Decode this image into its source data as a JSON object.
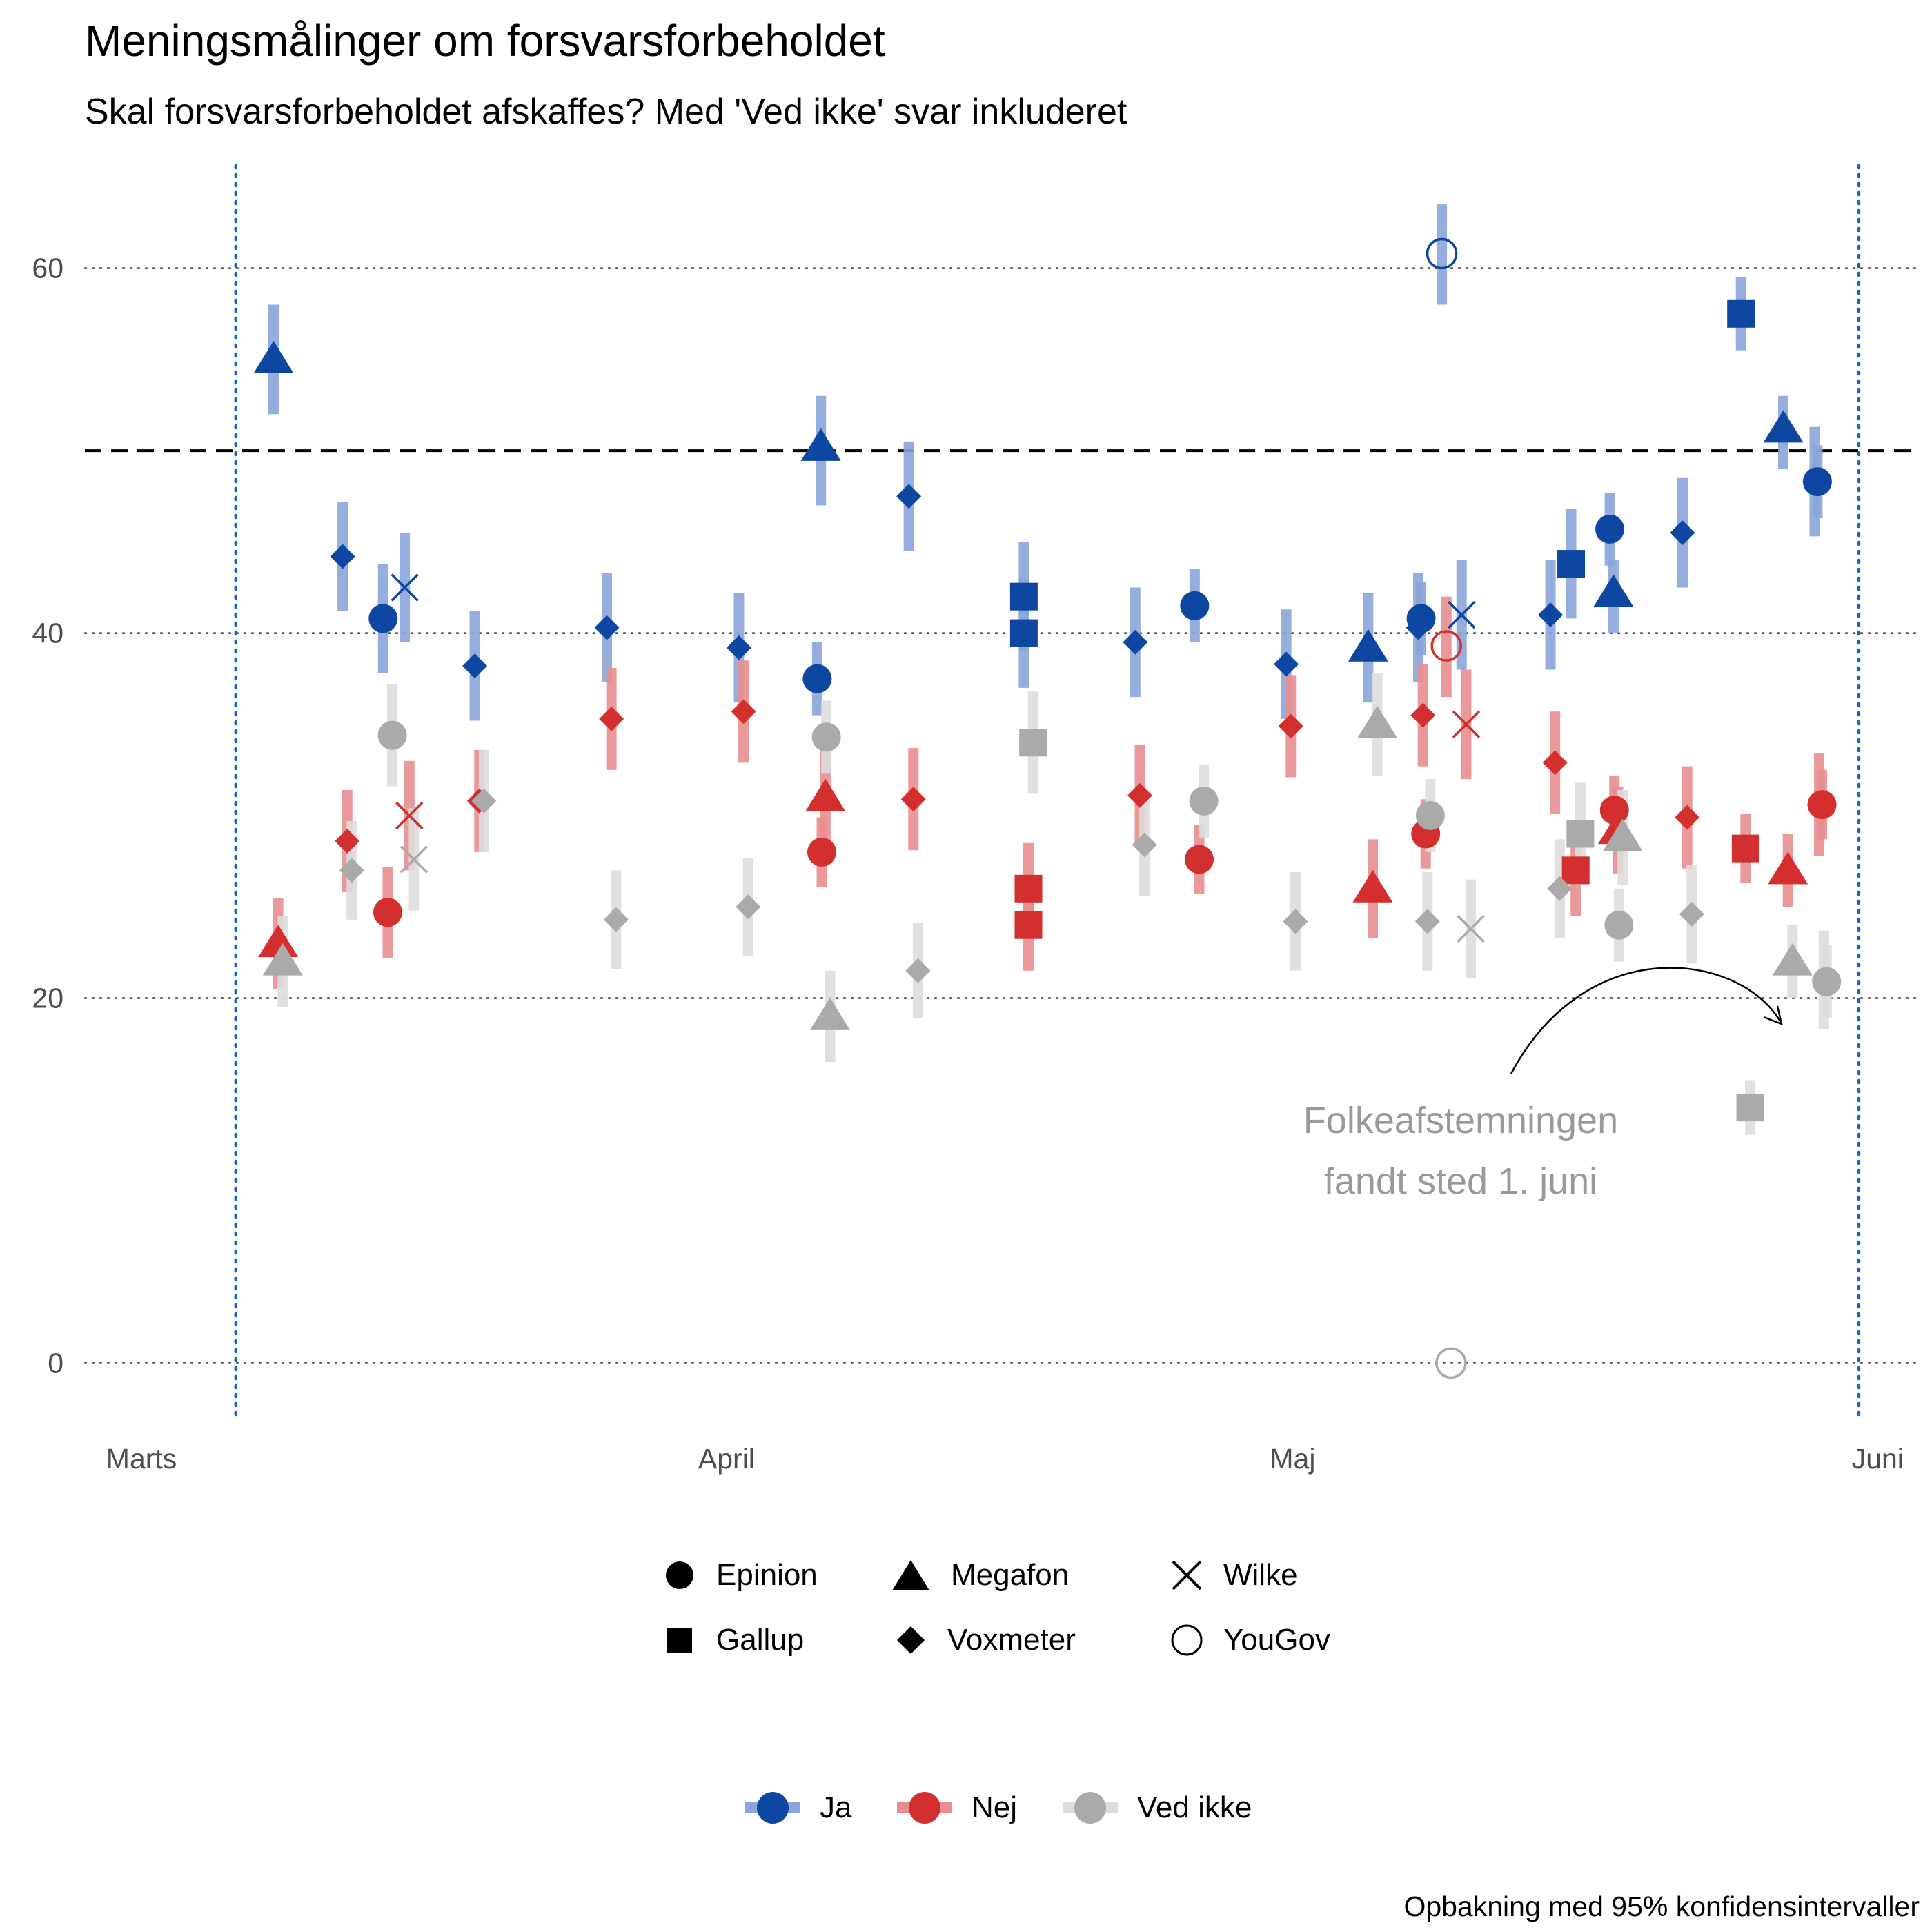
{
  "title": "Meningsmålinger om forsvarsforbeholdet",
  "subtitle": "Skal forsvarsforbeholdet afskaffes? Med 'Ved ikke' svar inkluderet",
  "caption": "Opbakning med 95% konfidensintervaller",
  "colors": {
    "Ja": "#0D47A1",
    "Nej": "#D32F2F",
    "Ved ikke": "#AAAAAA",
    "Ja_ci": "#8BA6DA",
    "Nej_ci": "#E88E90",
    "Ved ikke_ci": "#DDDDDD"
  },
  "legend_pollsters": [
    {
      "name": "Epinion",
      "shape": "circle"
    },
    {
      "name": "Gallup",
      "shape": "square"
    },
    {
      "name": "Megafon",
      "shape": "triangle"
    },
    {
      "name": "Voxmeter",
      "shape": "diamond"
    },
    {
      "name": "Wilke",
      "shape": "cross"
    },
    {
      "name": "YouGov",
      "shape": "open-circle"
    }
  ],
  "legend_answers": [
    "Ja",
    "Nej",
    "Ved ikke"
  ],
  "annotation": {
    "line1": "Folkeafstemningen",
    "line2": "fandt sted 1. juni"
  },
  "chart_data": {
    "type": "scatter",
    "title": "Meningsmålinger om forsvarsforbeholdet",
    "subtitle": "Skal forsvarsforbeholdet afskaffes? Med 'Ved ikke' svar inkluderet",
    "x_ticks": [
      {
        "date": "2022-03-01",
        "label": "Marts"
      },
      {
        "date": "2022-04-01",
        "label": "April"
      },
      {
        "date": "2022-05-01",
        "label": "Maj"
      },
      {
        "date": "2022-06-01",
        "label": "Juni"
      }
    ],
    "xlim": [
      "2022-02-26",
      "2022-06-03"
    ],
    "y_ticks": [
      0,
      20,
      40,
      60
    ],
    "ylim": [
      -3.2,
      66
    ],
    "grid": "horizontal dotted",
    "reference_line": {
      "y": 50,
      "style": "dashed"
    },
    "vertical_markers": [
      {
        "date": "2022-03-06"
      },
      {
        "date": "2022-05-31"
      }
    ],
    "series": [
      {
        "name": "Ja",
        "points": [
          {
            "pollster": "Megafon",
            "date": "2022-03-08",
            "value": 55.0,
            "ci": [
              52.0,
              58.0
            ]
          },
          {
            "pollster": "Voxmeter",
            "date": "2022-03-12",
            "value": 44.2,
            "ci": [
              41.2,
              47.2
            ]
          },
          {
            "pollster": "Epinion",
            "date": "2022-03-14",
            "value": 40.8,
            "ci": [
              37.8,
              43.8
            ]
          },
          {
            "pollster": "Wilke",
            "date": "2022-03-15",
            "value": 42.5,
            "ci": [
              39.5,
              45.5
            ]
          },
          {
            "pollster": "Voxmeter",
            "date": "2022-03-19",
            "value": 38.2,
            "ci": [
              35.2,
              41.2
            ]
          },
          {
            "pollster": "Voxmeter",
            "date": "2022-03-26",
            "value": 40.3,
            "ci": [
              37.3,
              43.3
            ]
          },
          {
            "pollster": "Voxmeter",
            "date": "2022-04-02",
            "value": 39.2,
            "ci": [
              36.2,
              42.2
            ]
          },
          {
            "pollster": "Epinion",
            "date": "2022-04-06",
            "value": 37.5,
            "ci": [
              35.5,
              39.5
            ]
          },
          {
            "pollster": "Megafon",
            "date": "2022-04-06",
            "value": 50.2,
            "ci": [
              47.0,
              53.0
            ]
          },
          {
            "pollster": "Voxmeter",
            "date": "2022-04-11",
            "value": 47.5,
            "ci": [
              44.5,
              50.5
            ]
          },
          {
            "pollster": "Gallup",
            "date": "2022-04-17",
            "value": 42.0,
            "ci": [
              39.0,
              45.0
            ]
          },
          {
            "pollster": "Gallup",
            "date": "2022-04-17",
            "value": 40.0,
            "ci": [
              37.0,
              43.0
            ]
          },
          {
            "pollster": "Voxmeter",
            "date": "2022-04-23",
            "value": 39.5,
            "ci": [
              36.5,
              42.5
            ]
          },
          {
            "pollster": "Epinion",
            "date": "2022-04-26",
            "value": 41.5,
            "ci": [
              39.5,
              43.5
            ]
          },
          {
            "pollster": "Voxmeter",
            "date": "2022-05-01",
            "value": 38.3,
            "ci": [
              35.3,
              41.3
            ]
          },
          {
            "pollster": "Megafon",
            "date": "2022-05-05",
            "value": 39.2,
            "ci": [
              36.2,
              42.2
            ]
          },
          {
            "pollster": "Epinion",
            "date": "2022-05-08",
            "value": 40.8,
            "ci": [
              38.8,
              42.8
            ]
          },
          {
            "pollster": "Voxmeter",
            "date": "2022-05-08",
            "value": 40.3,
            "ci": [
              37.3,
              43.3
            ]
          },
          {
            "pollster": "YouGov",
            "date": "2022-05-09",
            "value": 60.8,
            "ci": [
              58.0,
              63.5
            ]
          },
          {
            "pollster": "Wilke",
            "date": "2022-05-10",
            "value": 41.0,
            "ci": [
              38.0,
              44.0
            ]
          },
          {
            "pollster": "Voxmeter",
            "date": "2022-05-15",
            "value": 41.0,
            "ci": [
              38.0,
              44.0
            ]
          },
          {
            "pollster": "Gallup",
            "date": "2022-05-16",
            "value": 43.8,
            "ci": [
              40.8,
              46.8
            ]
          },
          {
            "pollster": "Epinion",
            "date": "2022-05-18",
            "value": 45.7,
            "ci": [
              43.7,
              47.7
            ]
          },
          {
            "pollster": "Megafon",
            "date": "2022-05-18",
            "value": 42.2,
            "ci": [
              40.0,
              44.0
            ]
          },
          {
            "pollster": "Voxmeter",
            "date": "2022-05-22",
            "value": 45.5,
            "ci": [
              42.5,
              48.5
            ]
          },
          {
            "pollster": "Gallup",
            "date": "2022-05-25",
            "value": 57.5,
            "ci": [
              55.5,
              59.5
            ]
          },
          {
            "pollster": "Megafon",
            "date": "2022-05-27",
            "value": 51.2,
            "ci": [
              49.0,
              53.0
            ]
          },
          {
            "pollster": "Epinion",
            "date": "2022-05-29",
            "value": 48.3,
            "ci": [
              46.3,
              50.3
            ]
          },
          {
            "pollster": "Voxmeter",
            "date": "2022-05-29",
            "value": 48.3,
            "ci": [
              45.3,
              51.3
            ]
          }
        ]
      },
      {
        "name": "Nej",
        "points": [
          {
            "pollster": "Megafon",
            "date": "2022-03-08",
            "value": 23.0,
            "ci": [
              20.5,
              25.5
            ]
          },
          {
            "pollster": "Voxmeter",
            "date": "2022-03-12",
            "value": 28.6,
            "ci": [
              25.8,
              31.4
            ]
          },
          {
            "pollster": "Epinion",
            "date": "2022-03-14",
            "value": 24.7,
            "ci": [
              22.2,
              27.2
            ]
          },
          {
            "pollster": "Wilke",
            "date": "2022-03-15",
            "value": 30.0,
            "ci": [
              27.0,
              33.0
            ]
          },
          {
            "pollster": "Voxmeter",
            "date": "2022-03-19",
            "value": 30.8,
            "ci": [
              28.0,
              33.6
            ]
          },
          {
            "pollster": "Voxmeter",
            "date": "2022-03-26",
            "value": 35.3,
            "ci": [
              32.5,
              38.1
            ]
          },
          {
            "pollster": "Voxmeter",
            "date": "2022-04-02",
            "value": 35.7,
            "ci": [
              32.9,
              38.5
            ]
          },
          {
            "pollster": "Epinion",
            "date": "2022-04-06",
            "value": 28.0,
            "ci": [
              26.1,
              29.9
            ]
          },
          {
            "pollster": "Megafon",
            "date": "2022-04-06",
            "value": 31.0,
            "ci": [
              28.2,
              33.8
            ]
          },
          {
            "pollster": "Voxmeter",
            "date": "2022-04-11",
            "value": 30.9,
            "ci": [
              28.1,
              33.7
            ]
          },
          {
            "pollster": "Gallup",
            "date": "2022-04-17",
            "value": 26.0,
            "ci": [
              23.5,
              28.5
            ]
          },
          {
            "pollster": "Gallup",
            "date": "2022-04-17",
            "value": 24.0,
            "ci": [
              21.5,
              26.5
            ]
          },
          {
            "pollster": "Voxmeter",
            "date": "2022-04-23",
            "value": 31.1,
            "ci": [
              28.3,
              33.9
            ]
          },
          {
            "pollster": "Epinion",
            "date": "2022-04-26",
            "value": 27.6,
            "ci": [
              25.7,
              29.5
            ]
          },
          {
            "pollster": "Voxmeter",
            "date": "2022-05-01",
            "value": 34.9,
            "ci": [
              32.1,
              37.7
            ]
          },
          {
            "pollster": "Megafon",
            "date": "2022-05-05",
            "value": 26.0,
            "ci": [
              23.3,
              28.7
            ]
          },
          {
            "pollster": "Epinion",
            "date": "2022-05-08",
            "value": 29.0,
            "ci": [
              27.1,
              30.9
            ]
          },
          {
            "pollster": "Voxmeter",
            "date": "2022-05-08",
            "value": 35.5,
            "ci": [
              32.7,
              38.3
            ]
          },
          {
            "pollster": "YouGov",
            "date": "2022-05-09",
            "value": 39.3,
            "ci": [
              36.5,
              42.0
            ]
          },
          {
            "pollster": "Wilke",
            "date": "2022-05-10",
            "value": 35.0,
            "ci": [
              32.0,
              38.0
            ]
          },
          {
            "pollster": "Voxmeter",
            "date": "2022-05-15",
            "value": 32.9,
            "ci": [
              30.1,
              35.7
            ]
          },
          {
            "pollster": "Gallup",
            "date": "2022-05-16",
            "value": 27.0,
            "ci": [
              24.5,
              29.5
            ]
          },
          {
            "pollster": "Epinion",
            "date": "2022-05-18",
            "value": 30.3,
            "ci": [
              28.4,
              32.2
            ]
          },
          {
            "pollster": "Megafon",
            "date": "2022-05-18",
            "value": 29.2,
            "ci": [
              26.8,
              31.6
            ]
          },
          {
            "pollster": "Voxmeter",
            "date": "2022-05-22",
            "value": 29.9,
            "ci": [
              27.1,
              32.7
            ]
          },
          {
            "pollster": "Gallup",
            "date": "2022-05-25",
            "value": 28.2,
            "ci": [
              26.3,
              30.1
            ]
          },
          {
            "pollster": "Megafon",
            "date": "2022-05-27",
            "value": 27.0,
            "ci": [
              25.0,
              29.0
            ]
          },
          {
            "pollster": "Epinion",
            "date": "2022-05-29",
            "value": 30.6,
            "ci": [
              28.7,
              32.5
            ]
          },
          {
            "pollster": "Voxmeter",
            "date": "2022-05-29",
            "value": 30.6,
            "ci": [
              27.8,
              33.4
            ]
          }
        ]
      },
      {
        "name": "Ved ikke",
        "points": [
          {
            "pollster": "Megafon",
            "date": "2022-03-08",
            "value": 22.0,
            "ci": [
              19.5,
              24.5
            ]
          },
          {
            "pollster": "Voxmeter",
            "date": "2022-03-12",
            "value": 27.0,
            "ci": [
              24.3,
              29.7
            ]
          },
          {
            "pollster": "Epinion",
            "date": "2022-03-14",
            "value": 34.4,
            "ci": [
              31.6,
              37.2
            ]
          },
          {
            "pollster": "Wilke",
            "date": "2022-03-15",
            "value": 27.6,
            "ci": [
              24.8,
              30.4
            ]
          },
          {
            "pollster": "Voxmeter",
            "date": "2022-03-19",
            "value": 30.8,
            "ci": [
              28.0,
              33.6
            ]
          },
          {
            "pollster": "Voxmeter",
            "date": "2022-03-26",
            "value": 24.3,
            "ci": [
              21.6,
              27.0
            ]
          },
          {
            "pollster": "Voxmeter",
            "date": "2022-04-02",
            "value": 25.0,
            "ci": [
              22.3,
              27.7
            ]
          },
          {
            "pollster": "Epinion",
            "date": "2022-04-06",
            "value": 34.3,
            "ci": [
              32.3,
              36.3
            ]
          },
          {
            "pollster": "Megafon",
            "date": "2022-04-06",
            "value": 19.0,
            "ci": [
              16.5,
              21.5
            ]
          },
          {
            "pollster": "Voxmeter",
            "date": "2022-04-11",
            "value": 21.5,
            "ci": [
              18.9,
              24.1
            ]
          },
          {
            "pollster": "Gallup",
            "date": "2022-04-17",
            "value": 34.0,
            "ci": [
              31.2,
              36.8
            ]
          },
          {
            "pollster": "Voxmeter",
            "date": "2022-04-23",
            "value": 28.4,
            "ci": [
              25.6,
              31.2
            ]
          },
          {
            "pollster": "Epinion",
            "date": "2022-04-26",
            "value": 30.8,
            "ci": [
              28.8,
              32.8
            ]
          },
          {
            "pollster": "Voxmeter",
            "date": "2022-05-01",
            "value": 24.2,
            "ci": [
              21.5,
              26.9
            ]
          },
          {
            "pollster": "Megafon",
            "date": "2022-05-05",
            "value": 35.0,
            "ci": [
              32.2,
              37.8
            ]
          },
          {
            "pollster": "Epinion",
            "date": "2022-05-08",
            "value": 30.0,
            "ci": [
              28.0,
              32.0
            ]
          },
          {
            "pollster": "Voxmeter",
            "date": "2022-05-08",
            "value": 24.2,
            "ci": [
              21.5,
              26.9
            ]
          },
          {
            "pollster": "YouGov",
            "date": "2022-05-09",
            "value": 0.0,
            "ci": [
              0.0,
              0.0
            ]
          },
          {
            "pollster": "Wilke",
            "date": "2022-05-10",
            "value": 23.8,
            "ci": [
              21.1,
              26.5
            ]
          },
          {
            "pollster": "Voxmeter",
            "date": "2022-05-15",
            "value": 26.0,
            "ci": [
              23.3,
              28.7
            ]
          },
          {
            "pollster": "Gallup",
            "date": "2022-05-16",
            "value": 29.0,
            "ci": [
              26.2,
              31.8
            ]
          },
          {
            "pollster": "Epinion",
            "date": "2022-05-18",
            "value": 24.0,
            "ci": [
              22.0,
              26.0
            ]
          },
          {
            "pollster": "Megafon",
            "date": "2022-05-18",
            "value": 28.8,
            "ci": [
              26.2,
              31.4
            ]
          },
          {
            "pollster": "Voxmeter",
            "date": "2022-05-22",
            "value": 24.6,
            "ci": [
              21.9,
              27.3
            ]
          },
          {
            "pollster": "Gallup",
            "date": "2022-05-25",
            "value": 14.0,
            "ci": [
              12.5,
              15.5
            ]
          },
          {
            "pollster": "Megafon",
            "date": "2022-05-27",
            "value": 22.0,
            "ci": [
              20.0,
              24.0
            ]
          },
          {
            "pollster": "Epinion",
            "date": "2022-05-29",
            "value": 20.9,
            "ci": [
              18.9,
              22.9
            ]
          },
          {
            "pollster": "Voxmeter",
            "date": "2022-05-29",
            "value": 21.0,
            "ci": [
              18.3,
              23.7
            ]
          }
        ]
      }
    ]
  }
}
